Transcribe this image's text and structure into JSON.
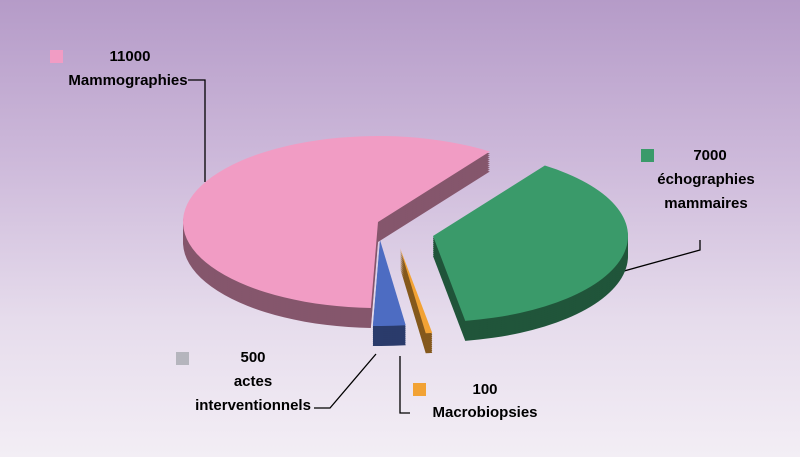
{
  "chart_data": {
    "type": "pie",
    "categories": [
      "Mammographies",
      "échographies mammaires",
      "actes interventionnels",
      "Macrobiopsies"
    ],
    "values": [
      11000,
      7000,
      500,
      100
    ],
    "colors": [
      "#f19cc4",
      "#3a9a6a",
      "#4d6cc2",
      "#f2a234"
    ],
    "marker_colors": [
      "#f19cc4",
      "#3a9a6a",
      "#b5b5bd",
      "#f2a234"
    ]
  }
}
